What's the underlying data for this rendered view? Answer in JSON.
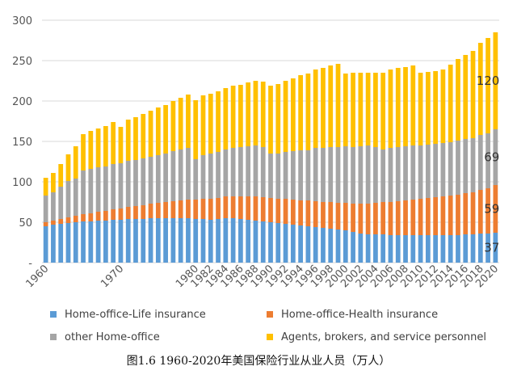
{
  "chart_data": {
    "type": "stacked-bar",
    "title": "图1.6 1960-2020年美国保险行业从业人员（万人）",
    "x": [
      1960,
      1961,
      1962,
      1963,
      1964,
      1965,
      1966,
      1967,
      1968,
      1969,
      1970,
      1971,
      1972,
      1973,
      1974,
      1975,
      1976,
      1977,
      1978,
      1979,
      1980,
      1981,
      1982,
      1983,
      1984,
      1985,
      1986,
      1987,
      1988,
      1989,
      1990,
      1991,
      1992,
      1993,
      1994,
      1995,
      1996,
      1997,
      1998,
      1999,
      2000,
      2001,
      2002,
      2003,
      2004,
      2005,
      2006,
      2007,
      2008,
      2009,
      2010,
      2011,
      2012,
      2013,
      2014,
      2015,
      2016,
      2017,
      2018,
      2019,
      2020
    ],
    "x_tick_labels": [
      "1960",
      "1970",
      "1980",
      "1982",
      "1984",
      "1986",
      "1988",
      "1990",
      "1992",
      "1994",
      "1996",
      "1998",
      "2000",
      "2002",
      "2004",
      "2006",
      "2008",
      "2010",
      "2012",
      "2014",
      "2016",
      "2018",
      "2020"
    ],
    "y_ticks": [
      "-",
      "50",
      "100",
      "150",
      "200",
      "250",
      "300"
    ],
    "ylim": [
      0,
      300
    ],
    "series": [
      {
        "name": "Home-office-Life insurance",
        "color": "#5b9bd5",
        "values": [
          45,
          47,
          48,
          49,
          50,
          51,
          51,
          52,
          52,
          53,
          53,
          54,
          54,
          54,
          55,
          55,
          55,
          55,
          55,
          55,
          54,
          54,
          53,
          54,
          55,
          55,
          54,
          53,
          52,
          51,
          50,
          49,
          48,
          47,
          46,
          45,
          44,
          43,
          42,
          41,
          40,
          38,
          36,
          35,
          35,
          35,
          34,
          34,
          34,
          34,
          34,
          34,
          34,
          34,
          34,
          34,
          35,
          35,
          36,
          36,
          37
        ]
      },
      {
        "name": "Home-office-Health insurance",
        "color": "#ed7d31",
        "values": [
          5,
          5,
          6,
          7,
          8,
          9,
          10,
          11,
          12,
          13,
          14,
          15,
          16,
          17,
          18,
          19,
          20,
          21,
          22,
          23,
          24,
          25,
          26,
          26,
          27,
          27,
          28,
          29,
          30,
          30,
          30,
          30,
          31,
          31,
          31,
          32,
          32,
          32,
          33,
          33,
          34,
          35,
          37,
          38,
          39,
          40,
          41,
          42,
          43,
          44,
          45,
          46,
          47,
          48,
          49,
          50,
          51,
          52,
          54,
          56,
          59
        ]
      },
      {
        "name": "other Home-office",
        "color": "#a5a5a5",
        "values": [
          33,
          35,
          40,
          45,
          46,
          54,
          55,
          55,
          55,
          56,
          56,
          57,
          57,
          58,
          58,
          59,
          60,
          62,
          63,
          64,
          50,
          54,
          56,
          57,
          58,
          60,
          61,
          62,
          63,
          62,
          55,
          56,
          58,
          60,
          62,
          62,
          66,
          67,
          68,
          69,
          70,
          70,
          71,
          72,
          69,
          65,
          67,
          67,
          67,
          67,
          66,
          66,
          66,
          66,
          66,
          67,
          67,
          67,
          68,
          68,
          69
        ]
      },
      {
        "name": "Agents, brokers, and service personnel",
        "color": "#ffc000",
        "values": [
          22,
          24,
          28,
          33,
          40,
          45,
          47,
          48,
          50,
          52,
          45,
          51,
          53,
          55,
          57,
          59,
          60,
          62,
          64,
          66,
          73,
          74,
          74,
          75,
          76,
          77,
          77,
          79,
          80,
          81,
          84,
          86,
          88,
          90,
          93,
          95,
          97,
          99,
          101,
          103,
          90,
          92,
          91,
          90,
          92,
          95,
          97,
          98,
          98,
          99,
          90,
          90,
          90,
          91,
          96,
          101,
          104,
          108,
          114,
          118,
          120
        ]
      }
    ],
    "labels_2020": [
      "37",
      "59",
      "69",
      "120"
    ],
    "legend_position": "bottom"
  },
  "legend": [
    {
      "label": "Home-office-Life insurance",
      "color": "#5b9bd5"
    },
    {
      "label": "Home-office-Health insurance",
      "color": "#ed7d31"
    },
    {
      "label": "other Home-office",
      "color": "#a5a5a5"
    },
    {
      "label": "Agents, brokers, and service personnel",
      "color": "#ffc000"
    }
  ],
  "caption": "图1.6  1960-2020年美国保险行业从业人员（万人）"
}
